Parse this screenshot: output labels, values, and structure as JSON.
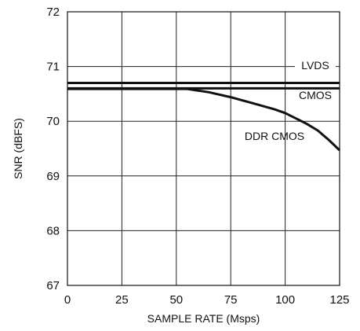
{
  "chart_data": {
    "type": "line",
    "title": "",
    "xlabel": "SAMPLE RATE (Msps)",
    "ylabel": "SNR (dBFS)",
    "xlim": [
      0,
      125
    ],
    "ylim": [
      67,
      72
    ],
    "x_ticks": [
      "0",
      "25",
      "50",
      "75",
      "100",
      "125"
    ],
    "y_ticks": [
      "67",
      "68",
      "69",
      "70",
      "71",
      "72"
    ],
    "grid": true,
    "series": [
      {
        "name": "LVDS",
        "x": [
          0,
          125
        ],
        "y": [
          70.7,
          70.7
        ]
      },
      {
        "name": "CMOS",
        "x": [
          0,
          125
        ],
        "y": [
          70.6,
          70.6
        ]
      },
      {
        "name": "DDR CMOS",
        "x": [
          0,
          55,
          65,
          75,
          85,
          95,
          100,
          105,
          110,
          115,
          120,
          125
        ],
        "y": [
          70.59,
          70.59,
          70.53,
          70.44,
          70.33,
          70.22,
          70.15,
          70.05,
          69.95,
          69.83,
          69.66,
          69.47
        ]
      }
    ]
  }
}
